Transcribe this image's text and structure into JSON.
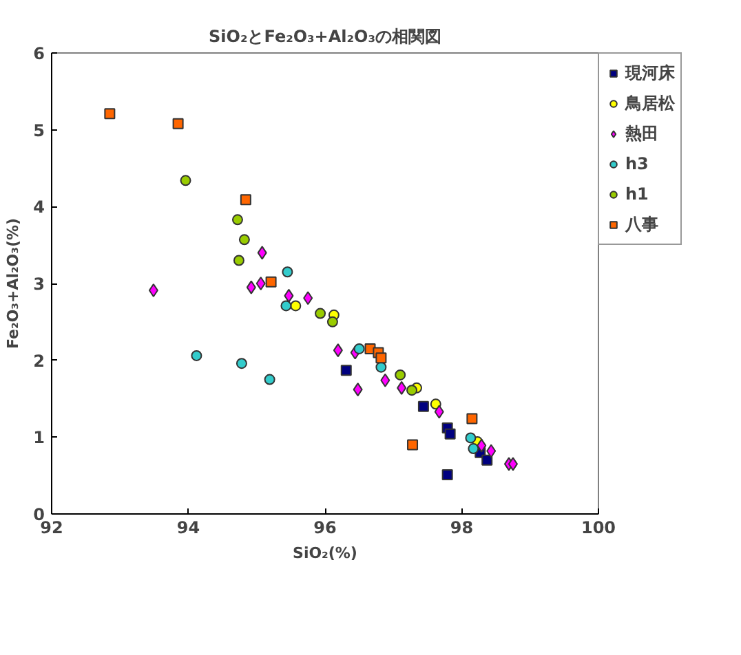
{
  "chart_data": {
    "type": "scatter",
    "title": "SiO₂とFe₂O₃+Al₂O₃の相関図",
    "xlabel": "SiO₂(%)",
    "ylabel": "Fe₂O₃+Al₂O₃(%)",
    "xlim": [
      92,
      100
    ],
    "xticks": [
      92,
      94,
      96,
      98,
      100
    ],
    "ylim": [
      0,
      6
    ],
    "yticks": [
      0,
      1,
      2,
      3,
      4,
      5,
      6
    ],
    "grid": false,
    "legend": "right",
    "series": [
      {
        "name": "現河床",
        "color": "#000080",
        "marker": "square",
        "x": [
          96.31,
          97.44,
          97.79,
          97.83,
          97.79,
          98.27,
          98.37
        ],
        "values": [
          1.87,
          1.4,
          1.12,
          1.04,
          0.51,
          0.8,
          0.7
        ]
      },
      {
        "name": "鳥居松",
        "color": "#ffff00",
        "marker": "circle",
        "x": [
          95.57,
          96.13,
          97.34,
          97.62,
          98.23
        ],
        "values": [
          2.71,
          2.59,
          1.64,
          1.43,
          0.94
        ]
      },
      {
        "name": "熱田",
        "color": "#ff00ff",
        "marker": "diamond",
        "x": [
          93.49,
          94.92,
          95.06,
          95.08,
          95.47,
          95.75,
          96.19,
          96.44,
          96.48,
          96.88,
          97.12,
          97.67,
          98.29,
          98.43,
          98.69,
          98.75
        ],
        "values": [
          2.91,
          2.95,
          3.0,
          3.4,
          2.84,
          2.81,
          2.13,
          2.1,
          1.62,
          1.74,
          1.64,
          1.33,
          0.89,
          0.82,
          0.65,
          0.65
        ]
      },
      {
        "name": "h3",
        "color": "#33cccc",
        "marker": "circle",
        "x": [
          94.12,
          94.78,
          95.19,
          95.43,
          95.45,
          96.5,
          96.82,
          98.13,
          98.17
        ],
        "values": [
          2.06,
          1.96,
          1.75,
          2.71,
          3.15,
          2.15,
          1.91,
          0.99,
          0.85
        ]
      },
      {
        "name": "h1",
        "color": "#99cc00",
        "marker": "circle",
        "x": [
          93.96,
          94.72,
          94.82,
          94.74,
          95.93,
          96.11,
          97.1,
          97.27
        ],
        "values": [
          4.34,
          3.83,
          3.57,
          3.3,
          2.61,
          2.5,
          1.81,
          1.61
        ]
      },
      {
        "name": "八事",
        "color": "#ff6600",
        "marker": "square",
        "x": [
          92.85,
          93.85,
          94.84,
          95.21,
          96.66,
          96.78,
          96.82,
          97.28,
          98.15
        ],
        "values": [
          5.21,
          5.08,
          4.09,
          3.02,
          2.15,
          2.1,
          2.03,
          0.9,
          1.24
        ]
      }
    ]
  }
}
